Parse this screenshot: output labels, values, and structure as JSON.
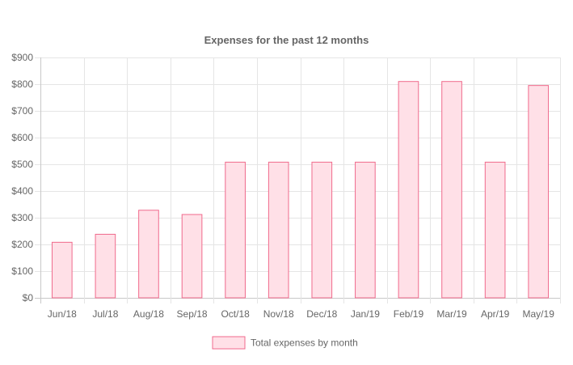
{
  "chart_data": {
    "type": "bar",
    "title": "Expenses for the past 12 months",
    "categories": [
      "Jun/18",
      "Jul/18",
      "Aug/18",
      "Sep/18",
      "Oct/18",
      "Nov/18",
      "Dec/18",
      "Jan/19",
      "Feb/19",
      "Mar/19",
      "Apr/19",
      "May/19"
    ],
    "series": [
      {
        "name": "Total expenses by month",
        "values": [
          208,
          238,
          328,
          312,
          508,
          508,
          508,
          508,
          810,
          810,
          508,
          795
        ]
      }
    ],
    "ylim": [
      0,
      900
    ],
    "yticks": [
      0,
      100,
      200,
      300,
      400,
      500,
      600,
      700,
      800,
      900
    ],
    "ytick_labels": [
      "$0",
      "$100",
      "$200",
      "$300",
      "$400",
      "$500",
      "$600",
      "$700",
      "$800",
      "$900"
    ],
    "grid": true,
    "legend_position": "bottom",
    "colors": {
      "bar_fill": "#ffe0e7",
      "bar_stroke": "#f06a8c"
    }
  }
}
